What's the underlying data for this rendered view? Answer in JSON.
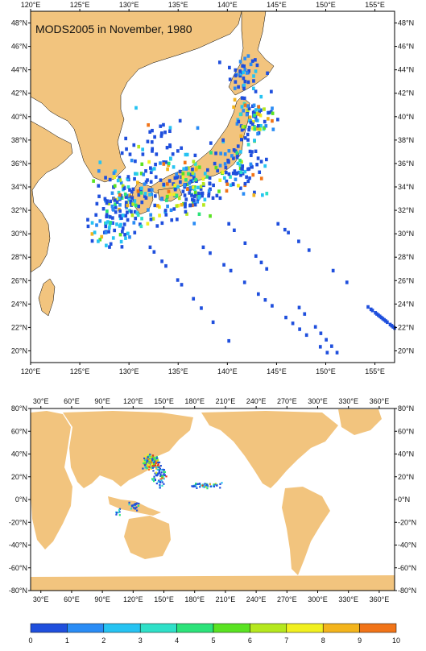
{
  "regional_map": {
    "title": "MODS2005 in November, 1980",
    "lon_labels": [
      "120°E",
      "125°E",
      "130°E",
      "135°E",
      "140°E",
      "145°E",
      "150°E",
      "155°E"
    ],
    "lat_labels": [
      "20°N",
      "22°N",
      "24°N",
      "26°N",
      "28°N",
      "30°N",
      "32°N",
      "34°N",
      "36°N",
      "38°N",
      "40°N",
      "42°N",
      "44°N",
      "46°N",
      "48°N"
    ],
    "extent": {
      "lon": [
        120,
        157
      ],
      "lat": [
        19,
        49
      ]
    }
  },
  "global_map": {
    "lon_labels": [
      "30°E",
      "60°E",
      "90°E",
      "120°E",
      "150°E",
      "180°E",
      "210°E",
      "240°E",
      "270°E",
      "300°E",
      "330°E",
      "360°E"
    ],
    "lat_labels": [
      "-80°N",
      "-60°N",
      "-40°N",
      "-20°N",
      "0°N",
      "20°N",
      "40°N",
      "60°N",
      "80°N"
    ],
    "extent": {
      "lon": [
        20,
        375
      ],
      "lat": [
        -80,
        80
      ]
    }
  },
  "colorbar": {
    "labels": [
      "0",
      "1",
      "2",
      "3",
      "4",
      "5",
      "6",
      "7",
      "8",
      "9",
      "10"
    ],
    "colors": [
      "#1f4fdd",
      "#2a8cf5",
      "#26c3f2",
      "#2fe0c8",
      "#2ce37a",
      "#5ae322",
      "#b5e81e",
      "#f1f020",
      "#f3b41c",
      "#f17418",
      "#e7341a"
    ]
  },
  "colors": {
    "land": "#f2c47e",
    "ocean": "#ffffff",
    "frame": "#000000"
  }
}
